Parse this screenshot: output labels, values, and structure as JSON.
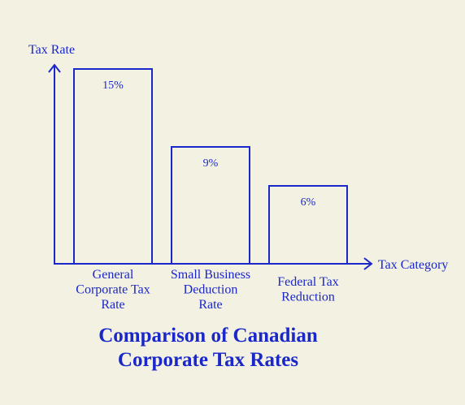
{
  "colors": {
    "ink": "#1a27c9",
    "background": "#f3f1e2"
  },
  "chart_data": {
    "type": "bar",
    "title": [
      "Comparison of Canadian",
      "Corporate Tax Rates"
    ],
    "ylabel": "Tax Rate",
    "xlabel": "Tax Category",
    "categories": [
      [
        "General",
        "Corporate Tax",
        "Rate"
      ],
      [
        "Small Business",
        "Deduction",
        "Rate"
      ],
      [
        "Federal Tax",
        "Reduction"
      ]
    ],
    "values": [
      15,
      9,
      6
    ],
    "data_labels": [
      "15%",
      "9%",
      "6%"
    ],
    "ylim": [
      0,
      15
    ],
    "grid": false,
    "legend": "none"
  }
}
